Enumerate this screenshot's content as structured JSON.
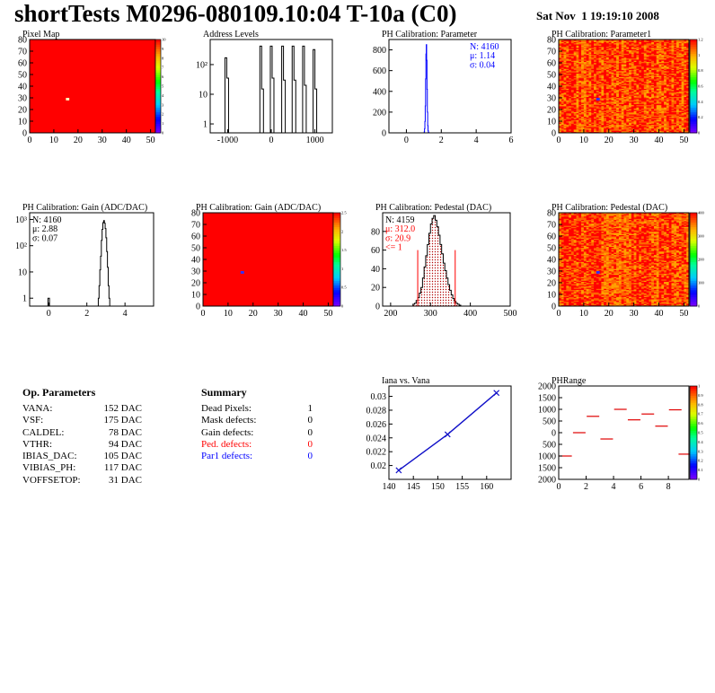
{
  "header": {
    "title": "shortTests M0296-080109.10:04 T-10a (C0)",
    "date": "Sat Nov  1 19:19:10 2008"
  },
  "colors": {
    "map_red": "#ff0000",
    "histogram_blue": "#0000ff",
    "stat_blue": "#0000ff",
    "stat_red": "#ff0000",
    "line_blue": "#1010c8",
    "range_red": "#e00000",
    "pedestal_hatch": "#b00000"
  },
  "op_parameters": {
    "title": "Op. Parameters",
    "items": [
      {
        "name": "VANA:",
        "value": "152 DAC"
      },
      {
        "name": "VSF:",
        "value": "175 DAC"
      },
      {
        "name": "CALDEL:",
        "value": "78 DAC"
      },
      {
        "name": "VTHR:",
        "value": "94 DAC"
      },
      {
        "name": "IBIAS_DAC:",
        "value": "105 DAC"
      },
      {
        "name": "VIBIAS_PH:",
        "value": "117 DAC"
      },
      {
        "name": "VOFFSETOP:",
        "value": "31 DAC"
      }
    ]
  },
  "summary": {
    "title": "Summary",
    "items": [
      {
        "name": "Dead Pixels:",
        "value": "1",
        "color": "#000000"
      },
      {
        "name": "Mask defects:",
        "value": "0",
        "color": "#000000"
      },
      {
        "name": "Gain defects:",
        "value": "0",
        "color": "#000000"
      },
      {
        "name": "Ped. defects:",
        "value": "0",
        "color": "#ff0000"
      },
      {
        "name": "Par1 defects:",
        "value": "0",
        "color": "#0000ff"
      }
    ]
  },
  "chart_data": [
    {
      "id": "pixel-map",
      "type": "heatmap",
      "title": "Pixel Map",
      "xlim": [
        0,
        52
      ],
      "ylim": [
        0,
        80
      ],
      "xticks": [
        0,
        10,
        20,
        30,
        40,
        50
      ],
      "yticks": [
        0,
        10,
        20,
        30,
        40,
        50,
        60,
        70,
        80
      ],
      "fill": "uniform",
      "uniform_value": 10,
      "special_pixels": [
        {
          "x": 15,
          "y": 29,
          "value": 0,
          "label": "dead"
        }
      ],
      "zlim": [
        0,
        10
      ],
      "zticks": [
        "0",
        "1",
        "2",
        "3",
        "4",
        "5",
        "6",
        "7",
        "8",
        "9",
        "10"
      ]
    },
    {
      "id": "address-levels",
      "type": "bar",
      "title": "Address Levels",
      "xlim": [
        -1400,
        1400
      ],
      "ylog": true,
      "ylim": [
        0.5,
        700
      ],
      "xticks": [
        -1000,
        0,
        1000
      ],
      "yticks": [
        {
          "value": 1,
          "label": "1"
        },
        {
          "value": 10,
          "label": "10"
        },
        {
          "value": 100,
          "label": "10²"
        }
      ],
      "peaks": [
        {
          "x": -1020,
          "values": [
            170,
            35
          ]
        },
        {
          "x": -220,
          "values": [
            420,
            15
          ]
        },
        {
          "x": 20,
          "values": [
            420,
            35
          ]
        },
        {
          "x": 280,
          "values": [
            420,
            30
          ]
        },
        {
          "x": 520,
          "values": [
            420,
            30
          ]
        },
        {
          "x": 760,
          "values": [
            420,
            20
          ]
        },
        {
          "x": 1000,
          "values": [
            320,
            15
          ]
        }
      ]
    },
    {
      "id": "ph-calibration-parameter",
      "type": "bar",
      "title": "PH Calibration: Parameter",
      "xlim": [
        -1,
        6
      ],
      "ylim": [
        0,
        900
      ],
      "xticks": [
        0,
        2,
        4,
        6
      ],
      "yticks": [
        0,
        200,
        400,
        600,
        800
      ],
      "bin_width": 0.02,
      "x": [
        1.02,
        1.04,
        1.06,
        1.08,
        1.1,
        1.12,
        1.14,
        1.16,
        1.18,
        1.2,
        1.22,
        1.24,
        1.26
      ],
      "values": [
        10,
        40,
        110,
        260,
        520,
        760,
        850,
        700,
        420,
        200,
        70,
        20,
        5
      ],
      "stats": [
        {
          "label": "N: 4160"
        },
        {
          "label": "μ: 1.14"
        },
        {
          "label": "σ: 0.04"
        }
      ]
    },
    {
      "id": "ph-calibration-parameter1",
      "type": "heatmap",
      "title": "PH Calibration: Parameter1",
      "xlim": [
        0,
        52
      ],
      "ylim": [
        0,
        80
      ],
      "xticks": [
        0,
        10,
        20,
        30,
        40,
        50
      ],
      "yticks": [
        0,
        10,
        20,
        30,
        40,
        50,
        60,
        70,
        80
      ],
      "fill": "noise",
      "value_range": [
        0.9,
        1.25
      ],
      "special_pixels": [
        {
          "x": 15,
          "y": 29,
          "value": 0,
          "label": "dead"
        }
      ],
      "zlim": [
        0,
        1.2
      ],
      "zticks": [
        "0",
        "0.2",
        "0.4",
        "0.6",
        "0.8",
        "1",
        "1.2"
      ]
    },
    {
      "id": "ph-calibration-gain",
      "type": "bar",
      "title": "PH Calibration: Gain (ADC/DAC)",
      "xlim": [
        -1,
        5.5
      ],
      "ylog": true,
      "ylim": [
        0.5,
        1800
      ],
      "xticks": [
        0,
        2,
        4
      ],
      "yticks": [
        {
          "value": 1,
          "label": "1"
        },
        {
          "value": 10,
          "label": "10"
        },
        {
          "value": 100,
          "label": "10²"
        },
        {
          "value": 1000,
          "label": "10³"
        }
      ],
      "bin_width": 0.04,
      "x": [
        2.6,
        2.64,
        2.68,
        2.72,
        2.76,
        2.8,
        2.84,
        2.88,
        2.92,
        2.96,
        3.0,
        3.04,
        3.08,
        3.12,
        3.16
      ],
      "values": [
        1,
        3,
        12,
        40,
        160,
        420,
        760,
        900,
        720,
        450,
        200,
        60,
        15,
        3,
        1
      ],
      "extra_bins": [
        {
          "x": 0,
          "value": 1
        }
      ],
      "stats": [
        {
          "label": "N: 4160"
        },
        {
          "label": "μ: 2.88"
        },
        {
          "label": "σ: 0.07"
        }
      ]
    },
    {
      "id": "ph-calibration-gain-map",
      "type": "heatmap",
      "title": "PH Calibration: Gain (ADC/DAC)",
      "xlim": [
        0,
        52
      ],
      "ylim": [
        0,
        80
      ],
      "xticks": [
        0,
        10,
        20,
        30,
        40,
        50
      ],
      "yticks": [
        0,
        10,
        20,
        30,
        40,
        50,
        60,
        70,
        80
      ],
      "fill": "uniform",
      "uniform_value": 2.7,
      "special_pixels": [
        {
          "x": 15,
          "y": 29,
          "value": 0,
          "label": "dead"
        }
      ],
      "zlim": [
        0,
        2.5
      ],
      "zticks": [
        "0",
        "0.5",
        "1",
        "1.5",
        "2",
        "2.5"
      ]
    },
    {
      "id": "ph-calibration-pedestal",
      "type": "bar",
      "title": "PH Calibration: Pedestal (DAC)",
      "xlim": [
        180,
        500
      ],
      "ylim": [
        0,
        100
      ],
      "xticks": [
        200,
        300,
        400,
        500
      ],
      "yticks": [
        0,
        20,
        40,
        60,
        80
      ],
      "bin_width": 4,
      "x": [
        256,
        260,
        264,
        268,
        272,
        276,
        280,
        284,
        288,
        292,
        296,
        300,
        304,
        308,
        312,
        316,
        320,
        324,
        328,
        332,
        336,
        340,
        344,
        348,
        352,
        356,
        360,
        364,
        368,
        372
      ],
      "values": [
        2,
        3,
        6,
        9,
        14,
        20,
        30,
        42,
        54,
        66,
        78,
        88,
        94,
        97,
        92,
        85,
        76,
        66,
        56,
        46,
        38,
        30,
        23,
        17,
        12,
        8,
        5,
        3,
        2,
        1
      ],
      "cut_lines": [
        {
          "x": 268,
          "y": 60
        },
        {
          "x": 362,
          "y": 60
        }
      ],
      "stats": [
        {
          "label": "N: 4159",
          "color": "#000000"
        },
        {
          "label": "μ: 312.0",
          "color": "#ff0000"
        },
        {
          "label": "σ: 20.9",
          "color": "#ff0000"
        },
        {
          "label": "<= 1",
          "color": "#ff0000"
        }
      ]
    },
    {
      "id": "ph-calibration-pedestal-map",
      "type": "heatmap",
      "title": "PH Calibration: Pedestal (DAC)",
      "xlim": [
        0,
        52
      ],
      "ylim": [
        0,
        80
      ],
      "xticks": [
        0,
        10,
        20,
        30,
        40,
        50
      ],
      "yticks": [
        0,
        10,
        20,
        30,
        40,
        50,
        60,
        70,
        80
      ],
      "fill": "noise",
      "value_range": [
        290,
        340
      ],
      "special_pixels": [
        {
          "x": 15,
          "y": 29,
          "value": 0,
          "label": "dead"
        }
      ],
      "zlim": [
        0,
        400
      ],
      "zticks": [
        "0",
        "100",
        "200",
        "300",
        "400"
      ]
    },
    {
      "id": "iana-vs-vana",
      "type": "line",
      "title": "Iana vs. Vana",
      "xlim": [
        140,
        165
      ],
      "ylim": [
        0.018,
        0.0315
      ],
      "xticks": [
        140,
        145,
        150,
        155,
        160
      ],
      "yticks": [
        {
          "value": 0.02,
          "label": "0.02"
        },
        {
          "value": 0.022,
          "label": "0.022"
        },
        {
          "value": 0.024,
          "label": "0.024"
        },
        {
          "value": 0.026,
          "label": "0.026"
        },
        {
          "value": 0.028,
          "label": "0.028"
        },
        {
          "value": 0.03,
          "label": "0.03"
        }
      ],
      "points": [
        {
          "x": 142,
          "y": 0.0193
        },
        {
          "x": 152,
          "y": 0.0245
        },
        {
          "x": 162,
          "y": 0.0305
        }
      ]
    },
    {
      "id": "ph-range",
      "type": "scatter",
      "title": "PHRange",
      "xlim": [
        0,
        9.5
      ],
      "ylim": [
        -2000,
        2000
      ],
      "xticks": [
        0,
        2,
        4,
        6,
        8
      ],
      "yticks": [
        {
          "value": 2000,
          "label": "2000"
        },
        {
          "value": 1500,
          "label": "1500"
        },
        {
          "value": 1000,
          "label": "1000"
        },
        {
          "value": 500,
          "label": "500"
        },
        {
          "value": 0,
          "label": "0"
        },
        {
          "value": -500,
          "label": "500"
        },
        {
          "value": -1000,
          "label": "1000"
        },
        {
          "value": -1500,
          "label": "1500"
        },
        {
          "value": -2000,
          "label": "2000"
        }
      ],
      "points": [
        {
          "x": 0.5,
          "y": -1000
        },
        {
          "x": 1.5,
          "y": 0
        },
        {
          "x": 2.5,
          "y": 700
        },
        {
          "x": 3.5,
          "y": -270
        },
        {
          "x": 4.5,
          "y": 1000
        },
        {
          "x": 5.5,
          "y": 550
        },
        {
          "x": 6.5,
          "y": 800
        },
        {
          "x": 7.5,
          "y": 280
        },
        {
          "x": 8.5,
          "y": 980
        },
        {
          "x": 9.2,
          "y": -920
        }
      ],
      "zlim": [
        0,
        1
      ],
      "zticks": [
        "0",
        "0.1",
        "0.2",
        "0.3",
        "0.4",
        "0.5",
        "0.6",
        "0.7",
        "0.8",
        "0.9",
        "1"
      ]
    }
  ]
}
